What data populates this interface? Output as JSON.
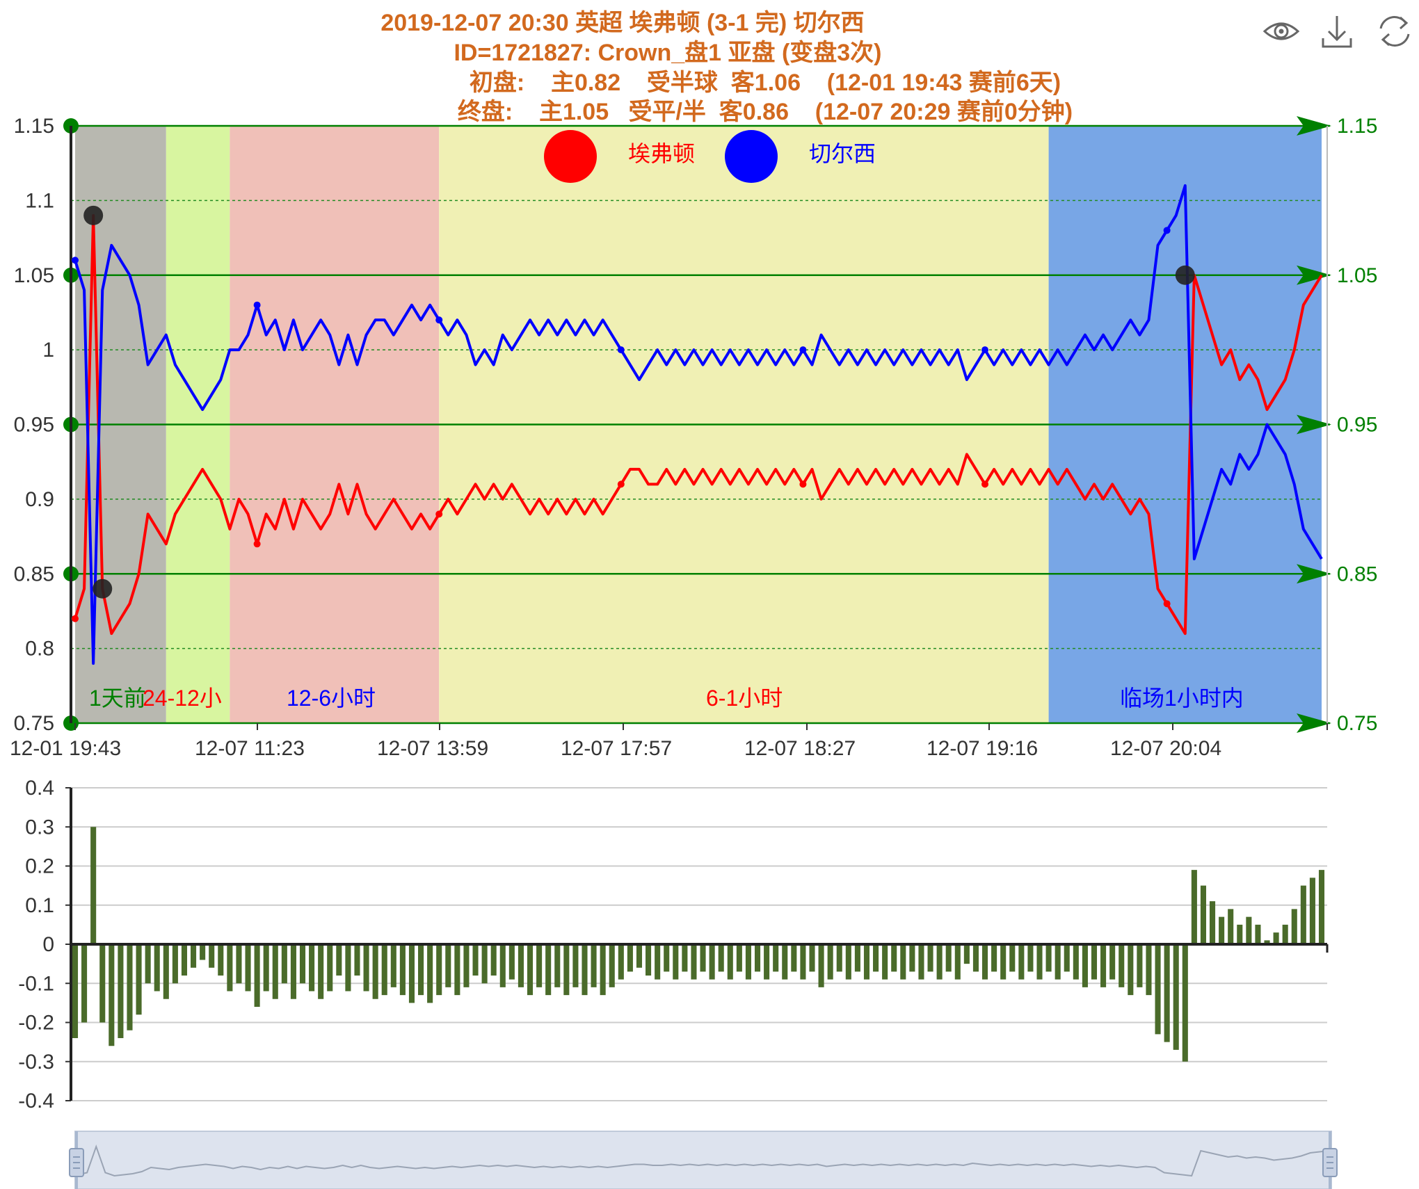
{
  "title": {
    "line1": "2019-12-07 20:30 英超 埃弗顿 (3-1 完) 切尔西",
    "line2": "ID=1721827: Crown_盘1 亚盘 (变盘3次)",
    "line3": "初盘:    主0.82    受半球  客1.06    (12-01 19:43 赛前6天)",
    "line4": "终盘:    主1.05   受平/半  客0.86    (12-07 20:29 赛前0分钟)"
  },
  "toolbar": {
    "view_icon": "eye-icon",
    "download_icon": "download-icon",
    "refresh_icon": "refresh-icon"
  },
  "colors": {
    "home": "#ff0000",
    "away": "#0000ff",
    "axis_green": "#008000",
    "bar": "#4a6b2a",
    "zone_1d": "#b8b8b0",
    "zone_24_12": "#d8f5a0",
    "zone_12_6": "#f0c0b8",
    "zone_6_1": "#f0f0b4",
    "zone_1h": "#78a6e6",
    "title": "#d2691e"
  },
  "chart_data": [
    {
      "type": "line",
      "legend": [
        {
          "name": "埃弗顿",
          "color": "#ff0000"
        },
        {
          "name": "切尔西",
          "color": "#0000ff"
        }
      ],
      "legend_placement": "top-center",
      "ylim": [
        0.75,
        1.15
      ],
      "y_ticks_left": [
        "1.15",
        "1.1",
        "1.05",
        "1",
        "0.95",
        "0.9",
        "0.85",
        "0.8",
        "0.75"
      ],
      "y_ticks_right": [
        "1.15",
        "1.05",
        "0.95",
        "0.85",
        "0.75"
      ],
      "x_tick_labels": [
        "12-01 19:43",
        "12-07 11:23",
        "12-07 13:59",
        "12-07 17:57",
        "12-07 18:27",
        "12-07 19:16",
        "12-07 20:04"
      ],
      "zones": [
        {
          "label": "1天前",
          "color": "#b8b8b0",
          "label_color": "#008000",
          "start": 0,
          "end": 10
        },
        {
          "label": "24-12小",
          "color": "#d8f5a0",
          "label_color": "#ff0000",
          "start": 10,
          "end": 17
        },
        {
          "label": "12-6小时",
          "color": "#f0c0b8",
          "label_color": "#0000ff",
          "start": 17,
          "end": 40
        },
        {
          "label": "6-1小时",
          "color": "#f0f0b4",
          "label_color": "#ff0000",
          "start": 40,
          "end": 107
        },
        {
          "label": "临场1小时内",
          "color": "#78a6e6",
          "label_color": "#0000ff",
          "start": 107,
          "end": 136
        }
      ],
      "series": [
        {
          "name": "埃弗顿",
          "color": "#ff0000",
          "values": [
            0.82,
            0.84,
            1.09,
            0.84,
            0.81,
            0.82,
            0.83,
            0.85,
            0.89,
            0.88,
            0.87,
            0.89,
            0.9,
            0.91,
            0.92,
            0.91,
            0.9,
            0.88,
            0.9,
            0.89,
            0.87,
            0.89,
            0.88,
            0.9,
            0.88,
            0.9,
            0.89,
            0.88,
            0.89,
            0.91,
            0.89,
            0.91,
            0.89,
            0.88,
            0.89,
            0.9,
            0.89,
            0.88,
            0.89,
            0.88,
            0.89,
            0.9,
            0.89,
            0.9,
            0.91,
            0.9,
            0.91,
            0.9,
            0.91,
            0.9,
            0.89,
            0.9,
            0.89,
            0.9,
            0.89,
            0.9,
            0.89,
            0.9,
            0.89,
            0.9,
            0.91,
            0.92,
            0.92,
            0.91,
            0.91,
            0.92,
            0.91,
            0.92,
            0.91,
            0.92,
            0.91,
            0.92,
            0.91,
            0.92,
            0.91,
            0.92,
            0.91,
            0.92,
            0.91,
            0.92,
            0.91,
            0.92,
            0.9,
            0.91,
            0.92,
            0.91,
            0.92,
            0.91,
            0.92,
            0.91,
            0.92,
            0.91,
            0.92,
            0.91,
            0.92,
            0.91,
            0.92,
            0.91,
            0.93,
            0.92,
            0.91,
            0.92,
            0.91,
            0.92,
            0.91,
            0.92,
            0.91,
            0.92,
            0.91,
            0.92,
            0.91,
            0.9,
            0.91,
            0.9,
            0.91,
            0.9,
            0.89,
            0.9,
            0.89,
            0.84,
            0.83,
            0.82,
            0.81,
            1.05,
            1.03,
            1.01,
            0.99,
            1.0,
            0.98,
            0.99,
            0.98,
            0.96,
            0.97,
            0.98,
            1.0,
            1.03,
            1.04,
            1.05
          ]
        },
        {
          "name": "切尔西",
          "color": "#0000ff",
          "values": [
            1.06,
            1.04,
            0.79,
            1.04,
            1.07,
            1.06,
            1.05,
            1.03,
            0.99,
            1.0,
            1.01,
            0.99,
            0.98,
            0.97,
            0.96,
            0.97,
            0.98,
            1.0,
            1.0,
            1.01,
            1.03,
            1.01,
            1.02,
            1.0,
            1.02,
            1.0,
            1.01,
            1.02,
            1.01,
            0.99,
            1.01,
            0.99,
            1.01,
            1.02,
            1.02,
            1.01,
            1.02,
            1.03,
            1.02,
            1.03,
            1.02,
            1.01,
            1.02,
            1.01,
            0.99,
            1.0,
            0.99,
            1.01,
            1.0,
            1.01,
            1.02,
            1.01,
            1.02,
            1.01,
            1.02,
            1.01,
            1.02,
            1.01,
            1.02,
            1.01,
            1.0,
            0.99,
            0.98,
            0.99,
            1.0,
            0.99,
            1.0,
            0.99,
            1.0,
            0.99,
            1.0,
            0.99,
            1.0,
            0.99,
            1.0,
            0.99,
            1.0,
            0.99,
            1.0,
            0.99,
            1.0,
            0.99,
            1.01,
            1.0,
            0.99,
            1.0,
            0.99,
            1.0,
            0.99,
            1.0,
            0.99,
            1.0,
            0.99,
            1.0,
            0.99,
            1.0,
            0.99,
            1.0,
            0.98,
            0.99,
            1.0,
            0.99,
            1.0,
            0.99,
            1.0,
            0.99,
            1.0,
            0.99,
            1.0,
            0.99,
            1.0,
            1.01,
            1.0,
            1.01,
            1.0,
            1.01,
            1.02,
            1.01,
            1.02,
            1.07,
            1.08,
            1.09,
            1.11,
            0.86,
            0.88,
            0.9,
            0.92,
            0.91,
            0.93,
            0.92,
            0.93,
            0.95,
            0.94,
            0.93,
            0.91,
            0.88,
            0.87,
            0.86
          ]
        }
      ],
      "change_points": [
        {
          "index": 2,
          "value": 1.09
        },
        {
          "index": 3,
          "value": 0.84
        },
        {
          "index": 122,
          "value": 1.05
        }
      ],
      "right_axis_arrows": [
        1.15,
        1.05,
        0.95,
        0.85,
        0.75
      ]
    },
    {
      "type": "bar",
      "ylim": [
        -0.4,
        0.4
      ],
      "y_ticks": [
        "0.4",
        "0.3",
        "0.2",
        "0.1",
        "0",
        "-0.1",
        "-0.2",
        "-0.3",
        "-0.4"
      ],
      "color": "#4a6b2a",
      "values": [
        -0.24,
        -0.2,
        0.3,
        -0.2,
        -0.26,
        -0.24,
        -0.22,
        -0.18,
        -0.1,
        -0.12,
        -0.14,
        -0.1,
        -0.08,
        -0.06,
        -0.04,
        -0.06,
        -0.08,
        -0.12,
        -0.1,
        -0.12,
        -0.16,
        -0.12,
        -0.14,
        -0.1,
        -0.14,
        -0.1,
        -0.12,
        -0.14,
        -0.12,
        -0.08,
        -0.12,
        -0.08,
        -0.12,
        -0.14,
        -0.13,
        -0.11,
        -0.13,
        -0.15,
        -0.13,
        -0.15,
        -0.13,
        -0.11,
        -0.13,
        -0.11,
        -0.08,
        -0.1,
        -0.08,
        -0.11,
        -0.09,
        -0.11,
        -0.13,
        -0.11,
        -0.13,
        -0.11,
        -0.13,
        -0.11,
        -0.13,
        -0.11,
        -0.13,
        -0.11,
        -0.09,
        -0.07,
        -0.06,
        -0.08,
        -0.09,
        -0.07,
        -0.09,
        -0.07,
        -0.09,
        -0.07,
        -0.09,
        -0.07,
        -0.09,
        -0.07,
        -0.09,
        -0.07,
        -0.09,
        -0.07,
        -0.09,
        -0.07,
        -0.09,
        -0.07,
        -0.11,
        -0.09,
        -0.07,
        -0.09,
        -0.07,
        -0.09,
        -0.07,
        -0.09,
        -0.07,
        -0.09,
        -0.07,
        -0.09,
        -0.07,
        -0.09,
        -0.07,
        -0.09,
        -0.05,
        -0.07,
        -0.09,
        -0.07,
        -0.09,
        -0.07,
        -0.09,
        -0.07,
        -0.09,
        -0.07,
        -0.09,
        -0.07,
        -0.09,
        -0.11,
        -0.09,
        -0.11,
        -0.09,
        -0.11,
        -0.13,
        -0.11,
        -0.13,
        -0.23,
        -0.25,
        -0.27,
        -0.3,
        0.19,
        0.15,
        0.11,
        0.07,
        0.09,
        0.05,
        0.07,
        0.05,
        0.01,
        0.03,
        0.05,
        0.09,
        0.15,
        0.17,
        0.19
      ]
    }
  ]
}
